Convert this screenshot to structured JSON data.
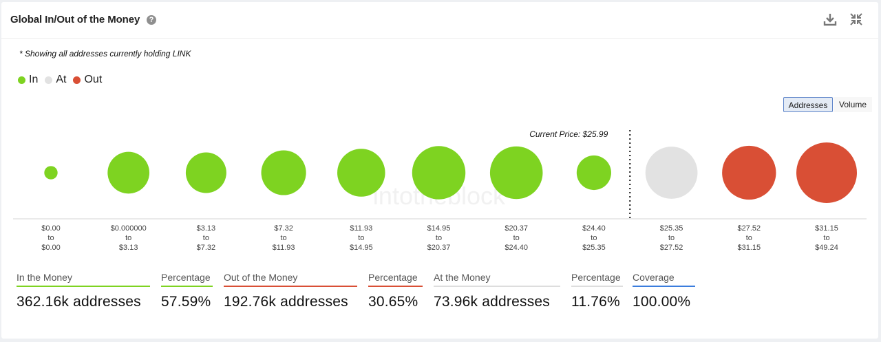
{
  "header": {
    "title": "Global In/Out of the Money",
    "help_glyph": "?",
    "icons": [
      "download-icon",
      "collapse-icon"
    ]
  },
  "note": "* Showing all addresses currently holding LINK",
  "legend": [
    {
      "label": "In",
      "color": "#7ed321"
    },
    {
      "label": "At",
      "color": "#e2e2e2"
    },
    {
      "label": "Out",
      "color": "#d94f35"
    }
  ],
  "toggle": {
    "addresses": "Addresses",
    "volume": "Volume",
    "selected": "Addresses"
  },
  "watermark": "intotheblock",
  "chart_data": {
    "type": "bubble",
    "current_price_label": "Current Price: $25.99",
    "current_price_after_bucket": 7,
    "range_connector": "to",
    "buckets": [
      {
        "from": "$0.00",
        "to": "$0.00",
        "status": "In",
        "relative_size": 0.22
      },
      {
        "from": "$0.000000",
        "to": "$3.13",
        "status": "In",
        "relative_size": 0.69
      },
      {
        "from": "$3.13",
        "to": "$7.32",
        "status": "In",
        "relative_size": 0.67
      },
      {
        "from": "$7.32",
        "to": "$11.93",
        "status": "In",
        "relative_size": 0.74
      },
      {
        "from": "$11.93",
        "to": "$14.95",
        "status": "In",
        "relative_size": 0.79
      },
      {
        "from": "$14.95",
        "to": "$20.37",
        "status": "In",
        "relative_size": 0.88
      },
      {
        "from": "$20.37",
        "to": "$24.40",
        "status": "In",
        "relative_size": 0.87
      },
      {
        "from": "$24.40",
        "to": "$25.35",
        "status": "In",
        "relative_size": 0.57
      },
      {
        "from": "$25.35",
        "to": "$27.52",
        "status": "At",
        "relative_size": 0.86
      },
      {
        "from": "$27.52",
        "to": "$31.15",
        "status": "Out",
        "relative_size": 0.89
      },
      {
        "from": "$31.15",
        "to": "$49.24",
        "status": "Out",
        "relative_size": 1.0
      }
    ]
  },
  "stats": [
    {
      "label": "In the Money",
      "value": "362.16k addresses",
      "color": "#7ed321"
    },
    {
      "label": "Percentage",
      "value": "57.59%",
      "color": "#7ed321"
    },
    {
      "label": "Out of the Money",
      "value": "192.76k addresses",
      "color": "#d94f35"
    },
    {
      "label": "Percentage",
      "value": "30.65%",
      "color": "#d94f35"
    },
    {
      "label": "At the Money",
      "value": "73.96k addresses",
      "color": "#dddddd"
    },
    {
      "label": "Percentage",
      "value": "11.76%",
      "color": "#dddddd"
    },
    {
      "label": "Coverage",
      "value": "100.00%",
      "color": "#3b7ddd"
    }
  ]
}
